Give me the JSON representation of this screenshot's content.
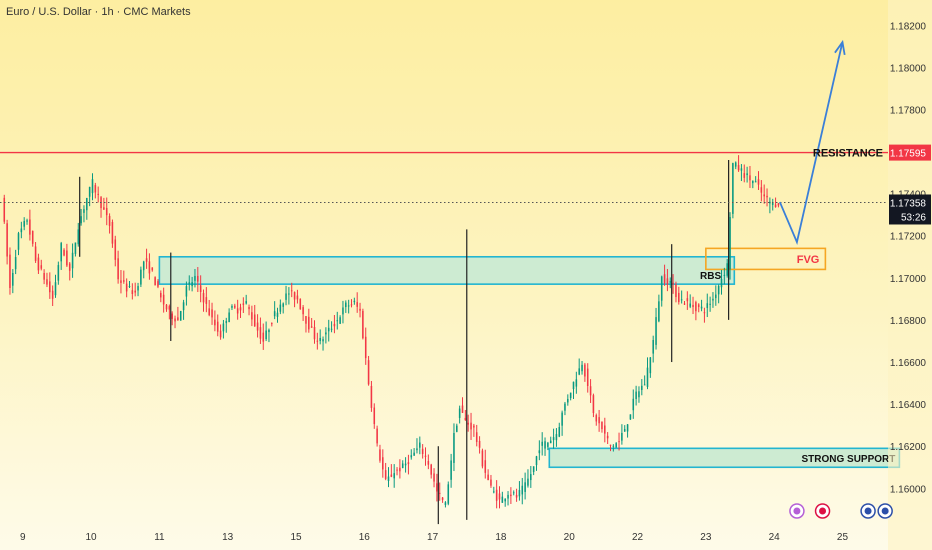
{
  "header": {
    "title": "Euro / U.S. Dollar · 1h · CMC Markets"
  },
  "colors": {
    "up": "#089981",
    "down": "#f23645",
    "resistance": "#f23645",
    "zone_fill": "#cdebd2",
    "zone_stroke": "#22b5d0",
    "fvg_stroke": "#f5a623",
    "fvg_text": "#f23645",
    "projection": "#3a7fd8",
    "price_tag": "#131722"
  },
  "chart_data": {
    "type": "candlestick",
    "symbol": "EURUSD",
    "timeframe": "1h",
    "ylim": [
      1.1584,
      1.1832
    ],
    "y_ticks": [
      "1.18200",
      "1.18000",
      "1.17800",
      "1.17400",
      "1.17200",
      "1.17000",
      "1.16800",
      "1.16600",
      "1.16400",
      "1.16200",
      "1.16000"
    ],
    "x_ticks": [
      "9",
      "10",
      "11",
      "13",
      "15",
      "16",
      "17",
      "18",
      "20",
      "22",
      "23",
      "24",
      "25"
    ],
    "x_tick_hours": [
      0,
      24,
      48,
      72,
      96,
      120,
      144,
      168,
      192,
      216,
      240,
      264,
      288
    ],
    "x_range_hours": [
      -8,
      304
    ],
    "price_path": [
      [
        -7,
        1.174
      ],
      [
        -4,
        1.1695
      ],
      [
        -1,
        1.172
      ],
      [
        2,
        1.1728
      ],
      [
        5,
        1.1708
      ],
      [
        8,
        1.17
      ],
      [
        11,
        1.169
      ],
      [
        14,
        1.1715
      ],
      [
        17,
        1.1703
      ],
      [
        20,
        1.1725
      ],
      [
        23,
        1.1738
      ],
      [
        25,
        1.1745
      ],
      [
        28,
        1.1735
      ],
      [
        31,
        1.1725
      ],
      [
        34,
        1.17
      ],
      [
        37,
        1.1695
      ],
      [
        40,
        1.1693
      ],
      [
        43,
        1.1708
      ],
      [
        46,
        1.1702
      ],
      [
        49,
        1.169
      ],
      [
        52,
        1.1683
      ],
      [
        55,
        1.168
      ],
      [
        58,
        1.1695
      ],
      [
        61,
        1.17
      ],
      [
        64,
        1.169
      ],
      [
        67,
        1.168
      ],
      [
        70,
        1.1673
      ],
      [
        73,
        1.1685
      ],
      [
        76,
        1.1685
      ],
      [
        79,
        1.1688
      ],
      [
        82,
        1.1678
      ],
      [
        85,
        1.167
      ],
      [
        88,
        1.168
      ],
      [
        91,
        1.1688
      ],
      [
        94,
        1.1693
      ],
      [
        97,
        1.169
      ],
      [
        100,
        1.168
      ],
      [
        103,
        1.1672
      ],
      [
        105,
        1.167
      ],
      [
        108,
        1.1675
      ],
      [
        111,
        1.168
      ],
      [
        114,
        1.1687
      ],
      [
        117,
        1.1688
      ],
      [
        119,
        1.1684
      ],
      [
        122,
        1.165
      ],
      [
        125,
        1.162
      ],
      [
        128,
        1.1603
      ],
      [
        131,
        1.1608
      ],
      [
        134,
        1.161
      ],
      [
        137,
        1.1615
      ],
      [
        140,
        1.162
      ],
      [
        143,
        1.1612
      ],
      [
        146,
        1.1598
      ],
      [
        149,
        1.1592
      ],
      [
        152,
        1.1625
      ],
      [
        154,
        1.1638
      ],
      [
        156,
        1.1632
      ],
      [
        159,
        1.1628
      ],
      [
        162,
        1.1612
      ],
      [
        165,
        1.16
      ],
      [
        168,
        1.1594
      ],
      [
        171,
        1.1598
      ],
      [
        174,
        1.1596
      ],
      [
        177,
        1.1601
      ],
      [
        180,
        1.161
      ],
      [
        182,
        1.162
      ],
      [
        185,
        1.1622
      ],
      [
        188,
        1.1626
      ],
      [
        191,
        1.164
      ],
      [
        194,
        1.165
      ],
      [
        197,
        1.166
      ],
      [
        199,
        1.165
      ],
      [
        201,
        1.1635
      ],
      [
        204,
        1.1628
      ],
      [
        207,
        1.162
      ],
      [
        210,
        1.1622
      ],
      [
        213,
        1.1632
      ],
      [
        216,
        1.1645
      ],
      [
        219,
        1.165
      ],
      [
        222,
        1.167
      ],
      [
        225,
        1.17
      ],
      [
        228,
        1.1698
      ],
      [
        231,
        1.169
      ],
      [
        234,
        1.1688
      ],
      [
        237,
        1.1686
      ],
      [
        240,
        1.1685
      ],
      [
        243,
        1.169
      ],
      [
        246,
        1.17
      ],
      [
        248,
        1.1706
      ],
      [
        249,
        1.173
      ],
      [
        250,
        1.1754
      ],
      [
        252,
        1.1752
      ],
      [
        255,
        1.1748
      ],
      [
        258,
        1.1745
      ],
      [
        261,
        1.1738
      ],
      [
        264,
        1.1735
      ],
      [
        266,
        1.1736
      ]
    ],
    "spikes": [
      {
        "hour": 156,
        "high": 1.1723,
        "low": 1.1585
      },
      {
        "hour": 228,
        "high": 1.1716,
        "low": 1.166
      },
      {
        "hour": 248,
        "high": 1.1756,
        "low": 1.168
      },
      {
        "hour": 20,
        "high": 1.1748,
        "low": 1.171
      },
      {
        "hour": 52,
        "high": 1.1712,
        "low": 1.167
      },
      {
        "hour": 146,
        "high": 1.162,
        "low": 1.1583
      }
    ],
    "resistance": {
      "price": 1.17595,
      "label": "RESISTANCE",
      "price_label": "1.17595"
    },
    "current_price": {
      "price": 1.17358,
      "label": "1.17358",
      "countdown": "53:26"
    },
    "rbs_zone": {
      "top": 1.171,
      "bottom": 1.1697,
      "x_start": 48,
      "x_end": 250,
      "label": "RBS"
    },
    "fvg_zone": {
      "top": 1.1714,
      "bottom": 1.1704,
      "x_start": 240,
      "x_end": 282,
      "label": "FVG"
    },
    "support_zone": {
      "top": 1.1619,
      "bottom": 1.161,
      "x_start": 185,
      "x_end": 308,
      "label": "STRONG SUPPORT"
    },
    "projection": [
      [
        266,
        1.1736
      ],
      [
        272,
        1.1717
      ],
      [
        288,
        1.1812
      ]
    ]
  }
}
